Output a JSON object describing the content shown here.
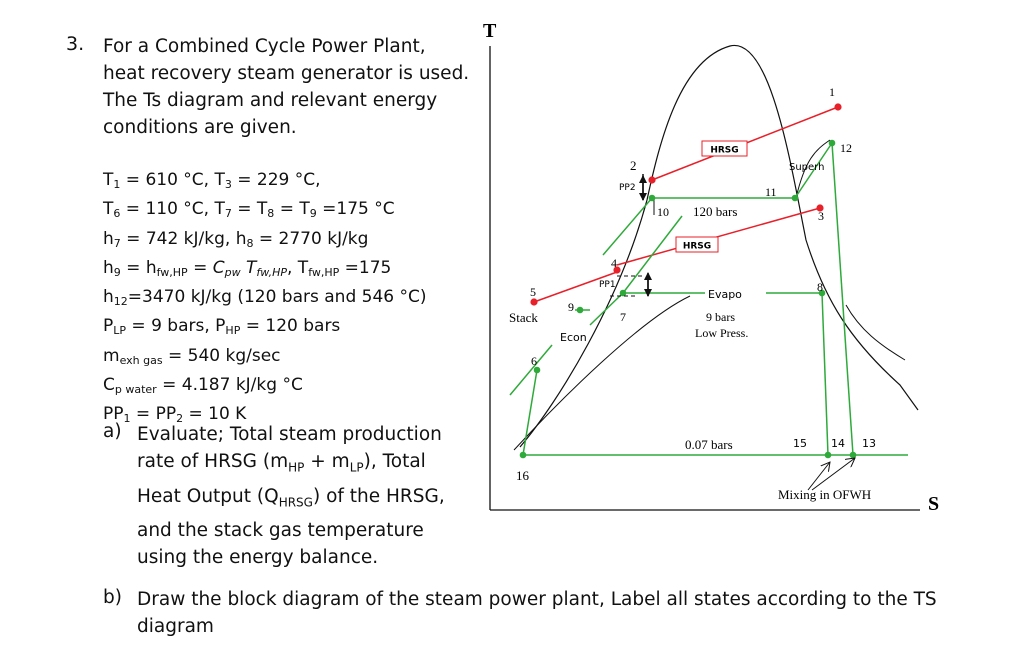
{
  "question": {
    "number": "3.",
    "intro_lines": [
      "For a Combined Cycle Power Plant,",
      "heat recovery steam generator is used.",
      "The Ts diagram and relevant energy",
      "conditions are given."
    ],
    "given": {
      "l1": {
        "a": "T",
        "a_sub": "1",
        "b": " = 610 °C, T",
        "b_sub": "3",
        "c": " = 229 °C,"
      },
      "l2": {
        "a": "T",
        "a_sub": "6",
        "b": " = 110 °C, T",
        "b_sub": "7",
        "c": " = T",
        "c_sub": "8",
        "d": " = T",
        "d_sub": "9",
        "e": " =175 °C"
      },
      "l3": {
        "a": "h",
        "a_sub": "7",
        "b": " = 742 kJ/kg, h",
        "b_sub": "8",
        "c": " = 2770 kJ/kg"
      },
      "l4": {
        "a": "h",
        "a_sub": "9",
        "b": " = h",
        "b_sub": "fw,HP",
        "c": " = ",
        "d": "C",
        "d_sub": "pw",
        "e": " T",
        "e_sub": "fw,HP",
        "f": ", T",
        "f_sub": "fw,HP",
        "g": " =175"
      },
      "l5": {
        "a": "h",
        "a_sub": "12",
        "b": "=3470 kJ/kg (120 bars and 546 °C)"
      },
      "l6": {
        "a": "P",
        "a_sub": "LP",
        "b": " = 9 bars, P",
        "b_sub": "HP",
        "c": " = 120 bars"
      },
      "l7": {
        "a": "m",
        "a_sub": "exh gas",
        "b": " = 540 kg/sec"
      },
      "l8": {
        "a": "C",
        "a_sub": "p water",
        "b": " = 4.187 kJ/kg °C"
      },
      "l9": {
        "a": "PP",
        "a_sub": "1",
        "b": " = PP",
        "b_sub": "2",
        "c": " = 10 K"
      }
    },
    "part_a": {
      "letter": "a)",
      "l1": {
        "a": "Evaluate; Total steam production"
      },
      "l2": {
        "a": "rate of HRSG (m",
        "a_sub": "HP",
        "b": " + m",
        "b_sub": "LP",
        "c": "), Total"
      },
      "l3": {
        "a": "Heat Output (Q",
        "a_sub": "HRSG",
        "b": ") of the HRSG,"
      },
      "l4": {
        "a": "and the stack gas temperature"
      },
      "l5": {
        "a": "using the energy balance."
      }
    },
    "part_b": {
      "letter": "b)",
      "lines": [
        "Draw the block diagram of the steam power plant, Label all states according to the TS",
        "diagram"
      ]
    }
  },
  "diagram": {
    "axis_t": "T",
    "axis_s": "S",
    "colors": {
      "red": "#e8202a",
      "green": "#2eaa3a",
      "black": "#111111"
    },
    "labels": {
      "s1": "1",
      "s2": "2",
      "s3": "3",
      "s4": "4",
      "s5": "5",
      "s6": "6",
      "s7": "7",
      "s8": "8",
      "s9": "9",
      "s10": "10",
      "s11": "11",
      "s12": "12",
      "s13": "13",
      "s14": "14",
      "s15": "15",
      "s16": "16",
      "hrsg_top": "HRSG",
      "hrsg_mid": "HRSG",
      "superh": "Superh",
      "pp2": "PP2",
      "pp1": "PP1",
      "bars120": "120 bars",
      "evapo": "Evapo",
      "bars9": "9 bars",
      "low_press": "Low Press.",
      "stack": "Stack",
      "econ": "Econ",
      "bars007": "0.07 bars",
      "mixing": "Mixing in OFWH"
    }
  }
}
